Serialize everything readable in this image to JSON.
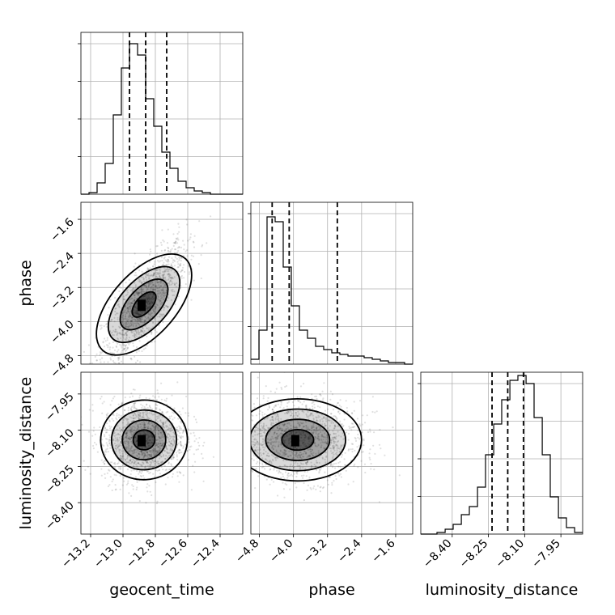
{
  "chart_data": {
    "type": "corner",
    "parameters": [
      "geocent_time",
      "phase",
      "luminosity_distance"
    ],
    "ticks": {
      "geocent_time": [
        "−13.2",
        "−13.0",
        "−12.8",
        "−12.6",
        "−12.4"
      ],
      "phase": [
        "−4.8",
        "−4.0",
        "−3.2",
        "−2.4",
        "−1.6"
      ],
      "luminosity_distance": [
        "−8.40",
        "−8.25",
        "−8.10",
        "−7.95"
      ]
    },
    "ranges": {
      "geocent_time": [
        -13.26,
        -12.26
      ],
      "phase": [
        -5.0,
        -1.2
      ],
      "luminosity_distance": [
        -8.53,
        -7.86
      ]
    },
    "quantiles": {
      "geocent_time": [
        -12.96,
        -12.86,
        -12.73
      ],
      "phase": [
        -4.5,
        -4.1,
        -2.97
      ],
      "luminosity_distance": [
        -8.235,
        -8.17,
        -8.105
      ]
    },
    "histograms": {
      "geocent_time": {
        "edges": [
          -13.26,
          -13.21,
          -13.16,
          -13.11,
          -13.06,
          -13.01,
          -12.96,
          -12.91,
          -12.86,
          -12.81,
          -12.76,
          -12.71,
          -12.66,
          -12.61,
          -12.56,
          -12.51,
          -12.46,
          -12.41,
          -12.36,
          -12.31,
          -12.26
        ],
        "counts": [
          0.0,
          0.01,
          0.07,
          0.19,
          0.49,
          0.78,
          0.93,
          0.86,
          0.59,
          0.42,
          0.26,
          0.16,
          0.08,
          0.04,
          0.02,
          0.01,
          0.0,
          0.0,
          0.0,
          0.0
        ]
      },
      "phase": {
        "edges": [
          -5.0,
          -4.81,
          -4.62,
          -4.43,
          -4.24,
          -4.05,
          -3.86,
          -3.67,
          -3.48,
          -3.29,
          -3.1,
          -2.91,
          -2.72,
          -2.53,
          -2.34,
          -2.15,
          -1.96,
          -1.77,
          -1.58,
          -1.39,
          -1.2
        ],
        "counts": [
          0.03,
          0.21,
          0.91,
          0.88,
          0.6,
          0.36,
          0.21,
          0.16,
          0.11,
          0.09,
          0.07,
          0.06,
          0.05,
          0.05,
          0.04,
          0.03,
          0.02,
          0.01,
          0.01,
          0.0
        ]
      },
      "luminosity_distance": {
        "edges": [
          -8.53,
          -8.496,
          -8.463,
          -8.429,
          -8.396,
          -8.362,
          -8.329,
          -8.295,
          -8.262,
          -8.228,
          -8.195,
          -8.161,
          -8.128,
          -8.094,
          -8.061,
          -8.027,
          -7.994,
          -7.96,
          -7.927,
          -7.893,
          -7.86
        ],
        "counts": [
          0.0,
          0.0,
          0.01,
          0.03,
          0.06,
          0.12,
          0.17,
          0.29,
          0.49,
          0.68,
          0.83,
          0.95,
          0.98,
          0.93,
          0.72,
          0.49,
          0.23,
          0.1,
          0.04,
          0.01
        ]
      }
    },
    "joint": [
      {
        "x": "geocent_time",
        "y": "phase",
        "mean": [
          -12.87,
          -3.6
        ],
        "std": [
          0.13,
          0.7
        ],
        "corr": 0.78
      },
      {
        "x": "geocent_time",
        "y": "luminosity_distance",
        "mean": [
          -12.87,
          -8.14
        ],
        "std": [
          0.13,
          0.085
        ],
        "corr": 0.05
      },
      {
        "x": "phase",
        "y": "luminosity_distance",
        "mean": [
          -3.9,
          -8.14
        ],
        "std": [
          0.75,
          0.085
        ],
        "corr": 0.0
      }
    ],
    "contour_levels": [
      "0.5 sigma",
      "1 sigma",
      "1.5 sigma",
      "2 sigma"
    ],
    "grid": true,
    "colors": {
      "points": "#000000",
      "lines": "#000000",
      "grid": "#b0b0b0"
    }
  }
}
